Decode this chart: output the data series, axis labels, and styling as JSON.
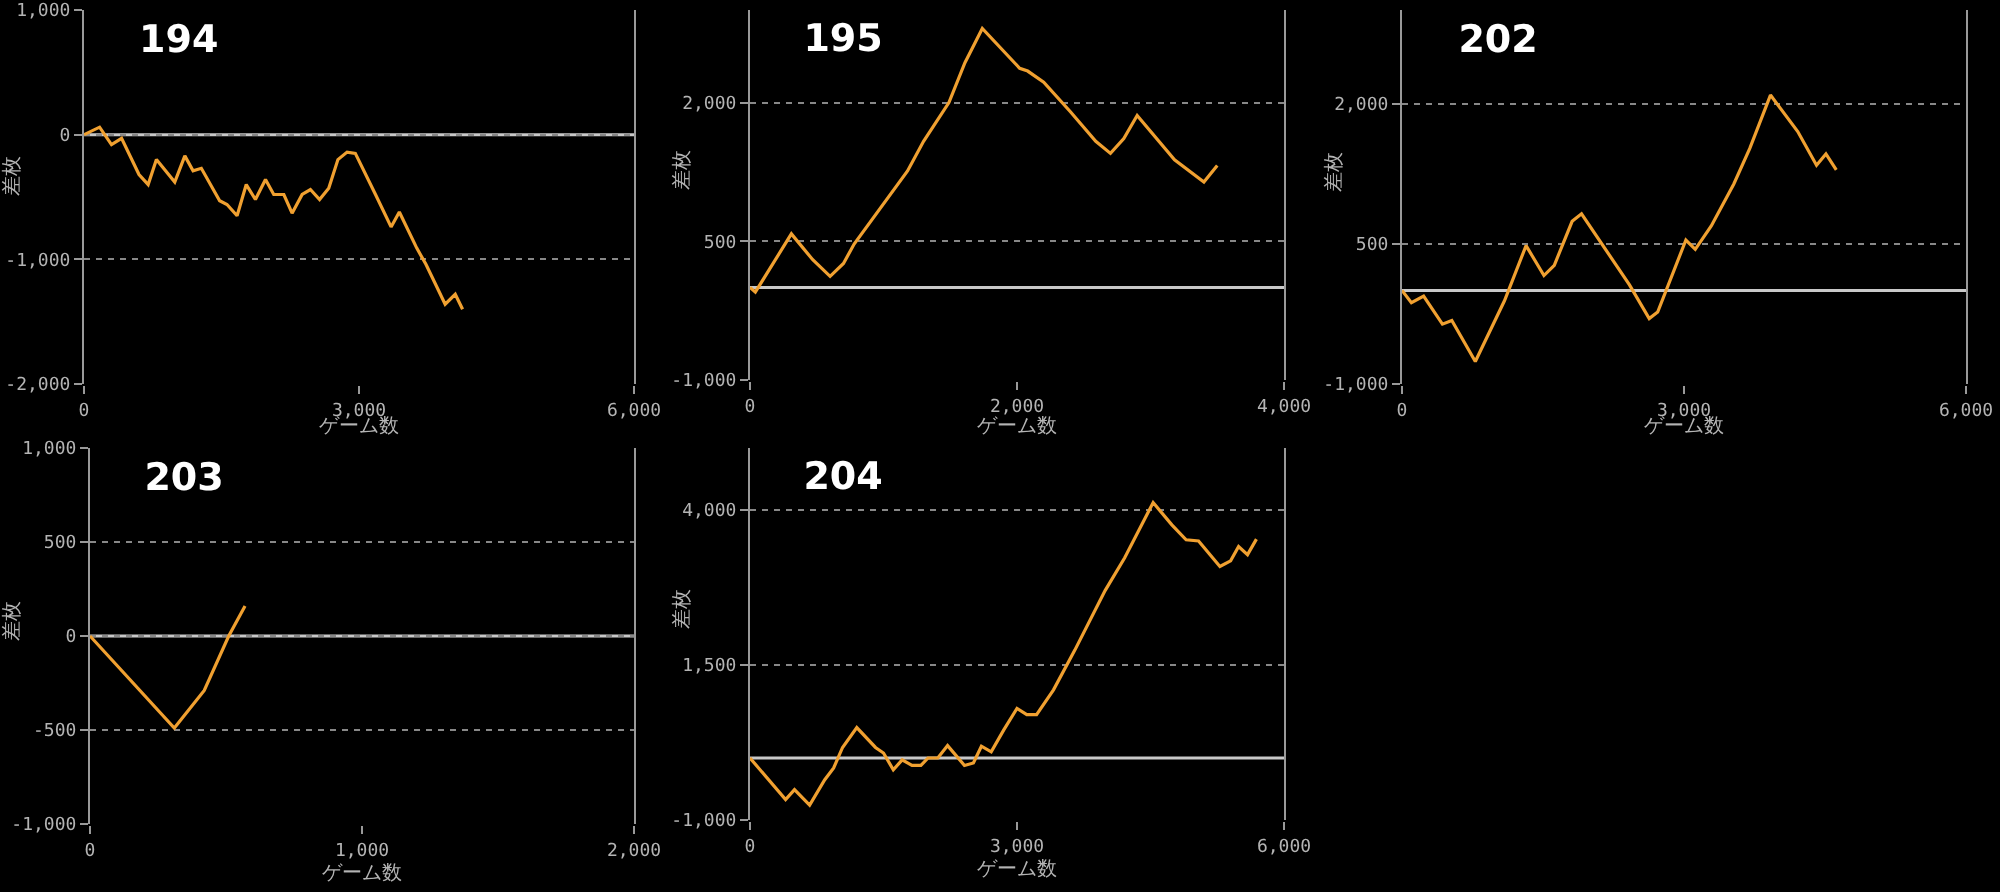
{
  "chart_data": [
    {
      "type": "line",
      "title": "194",
      "xlabel": "ゲーム数",
      "ylabel": "差枚",
      "grid": "y",
      "marker": "none",
      "line_style": "solid",
      "xlim": [
        0,
        6000
      ],
      "ylim": [
        -2000,
        1000
      ],
      "xticks": [
        {
          "value": 0,
          "label": "0"
        },
        {
          "value": 3000,
          "label": "3,000"
        },
        {
          "value": 6000,
          "label": "6,000"
        }
      ],
      "yticks": [
        {
          "value": -2000,
          "label": "-2,000"
        },
        {
          "value": -1000,
          "label": "-1,000"
        },
        0,
        {
          "value": 1000,
          "label": "1,000"
        }
      ],
      "ref_lines": [
        {
          "axis": "y",
          "value": 0,
          "color": "#c8c8c8"
        }
      ],
      "series": [
        {
          "color": "#f0a030",
          "x": [
            0,
            170,
            300,
            410,
            600,
            700,
            790,
            990,
            1100,
            1190,
            1280,
            1480,
            1560,
            1670,
            1770,
            1870,
            1980,
            2070,
            2180,
            2270,
            2380,
            2470,
            2570,
            2670,
            2770,
            2870,
            2960,
            3180,
            3350,
            3440,
            3630,
            3730,
            3940,
            4050,
            4130
          ],
          "values": [
            0,
            60,
            -80,
            -30,
            -320,
            -400,
            -200,
            -380,
            -170,
            -290,
            -270,
            -530,
            -560,
            -650,
            -400,
            -520,
            -360,
            -480,
            -480,
            -630,
            -480,
            -440,
            -520,
            -430,
            -200,
            -140,
            -150,
            -480,
            -740,
            -620,
            -910,
            -1040,
            -1360,
            -1280,
            -1400
          ]
        }
      ]
    },
    {
      "type": "line",
      "title": "195",
      "xlabel": "ゲーム数",
      "ylabel": "差枚",
      "grid": "y",
      "marker": "none",
      "line_style": "solid",
      "xlim": [
        0,
        4000
      ],
      "ylim": [
        -1000,
        3000
      ],
      "xticks": [
        {
          "value": 0,
          "label": "0"
        },
        {
          "value": 2000,
          "label": "2,000"
        },
        {
          "value": 4000,
          "label": "4,000"
        }
      ],
      "yticks": [
        {
          "value": -1000,
          "label": "-1,000"
        },
        500,
        {
          "value": 2000,
          "label": "2,000"
        }
      ],
      "ref_lines": [
        {
          "axis": "y",
          "value": 0,
          "color": "#c8c8c8"
        }
      ],
      "series": [
        {
          "color": "#f0a030",
          "x": [
            0,
            40,
            310,
            470,
            600,
            700,
            780,
            1180,
            1300,
            1490,
            1610,
            1740,
            2020,
            2080,
            2200,
            2400,
            2590,
            2700,
            2800,
            2900,
            3180,
            3400,
            3500
          ],
          "values": [
            0,
            -50,
            580,
            300,
            120,
            260,
            470,
            1260,
            1580,
            2000,
            2430,
            2800,
            2370,
            2340,
            2220,
            1900,
            1580,
            1450,
            1610,
            1860,
            1380,
            1140,
            1320
          ]
        }
      ]
    },
    {
      "type": "line",
      "title": "202",
      "xlabel": "ゲーム数",
      "ylabel": "差枚",
      "grid": "y",
      "marker": "none",
      "line_style": "solid",
      "xlim": [
        0,
        6000
      ],
      "ylim": [
        -1000,
        3000
      ],
      "xticks": [
        {
          "value": 0,
          "label": "0"
        },
        {
          "value": 3000,
          "label": "3,000"
        },
        {
          "value": 6000,
          "label": "6,000"
        }
      ],
      "yticks": [
        {
          "value": -1000,
          "label": "-1,000"
        },
        500,
        {
          "value": 2000,
          "label": "2,000"
        }
      ],
      "ref_lines": [
        {
          "axis": "y",
          "value": 0,
          "color": "#c8c8c8"
        }
      ],
      "series": [
        {
          "color": "#f0a030",
          "x": [
            0,
            100,
            230,
            430,
            530,
            780,
            1090,
            1320,
            1510,
            1620,
            1810,
            1910,
            2420,
            2630,
            2720,
            3020,
            3120,
            3290,
            3530,
            3700,
            3920,
            4210,
            4410,
            4510,
            4620
          ],
          "values": [
            0,
            -130,
            -60,
            -360,
            -320,
            -760,
            -110,
            480,
            160,
            270,
            740,
            820,
            60,
            -300,
            -230,
            540,
            440,
            690,
            1140,
            1520,
            2090,
            1700,
            1340,
            1460,
            1290
          ]
        }
      ]
    },
    {
      "type": "line",
      "title": "203",
      "xlabel": "ゲーム数",
      "ylabel": "差枚",
      "grid": "y",
      "marker": "none",
      "line_style": "solid",
      "xlim": [
        0,
        2000
      ],
      "ylim": [
        -1000,
        1000
      ],
      "xticks": [
        {
          "value": 0,
          "label": "0"
        },
        {
          "value": 1000,
          "label": "1,000"
        },
        {
          "value": 2000,
          "label": "2,000"
        }
      ],
      "yticks": [
        {
          "value": -1000,
          "label": "-1,000"
        },
        -500,
        0,
        500,
        {
          "value": 1000,
          "label": "1,000"
        }
      ],
      "ref_lines": [
        {
          "axis": "y",
          "value": 0,
          "color": "#c8c8c8"
        }
      ],
      "series": [
        {
          "color": "#f0a030",
          "x": [
            0,
            310,
            420,
            510,
            570
          ],
          "values": [
            0,
            -490,
            -290,
            0,
            160
          ]
        }
      ]
    },
    {
      "type": "line",
      "title": "204",
      "xlabel": "ゲーム数",
      "ylabel": "差枚",
      "grid": "y",
      "marker": "none",
      "line_style": "solid",
      "xlim": [
        0,
        6000
      ],
      "ylim": [
        -1000,
        5000
      ],
      "xticks": [
        {
          "value": 0,
          "label": "0"
        },
        {
          "value": 3000,
          "label": "3,000"
        },
        {
          "value": 6000,
          "label": "6,000"
        }
      ],
      "yticks": [
        {
          "value": -1000,
          "label": "-1,000"
        },
        {
          "value": 1500,
          "label": "1,500"
        },
        {
          "value": 4000,
          "label": "4,000"
        }
      ],
      "ref_lines": [
        {
          "axis": "y",
          "value": 0,
          "color": "#c8c8c8"
        }
      ],
      "series": [
        {
          "color": "#f0a030",
          "x": [
            0,
            400,
            500,
            670,
            840,
            940,
            1040,
            1200,
            1410,
            1500,
            1610,
            1710,
            1820,
            1920,
            2000,
            2110,
            2220,
            2410,
            2510,
            2600,
            2710,
            2850,
            3000,
            3110,
            3220,
            3410,
            3650,
            3990,
            4210,
            4530,
            4740,
            4900,
            5040,
            5280,
            5400,
            5490,
            5590,
            5690
          ],
          "values": [
            0,
            -670,
            -510,
            -760,
            -350,
            -160,
            170,
            490,
            170,
            80,
            -190,
            -30,
            -120,
            -120,
            0,
            0,
            200,
            -120,
            -80,
            190,
            100,
            450,
            800,
            700,
            700,
            1100,
            1740,
            2700,
            3230,
            4120,
            3760,
            3520,
            3500,
            3090,
            3180,
            3410,
            3280,
            3530
          ]
        }
      ]
    }
  ]
}
